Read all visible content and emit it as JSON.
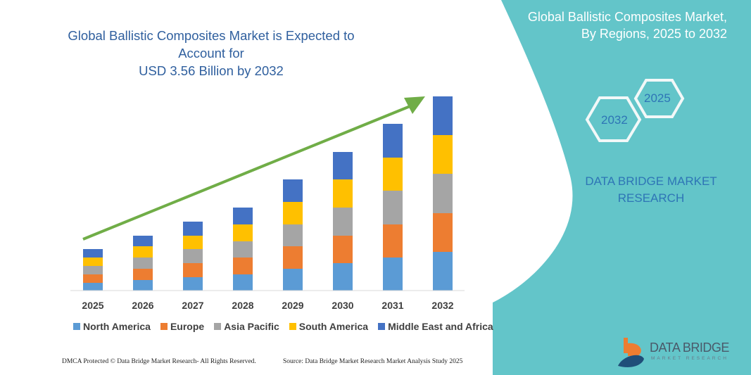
{
  "chart_data": {
    "type": "bar",
    "stacked": true,
    "title": "Global Ballistic Composites Market is Expected to Account for USD 3.56 Billion by 2032",
    "categories": [
      "2025",
      "2026",
      "2027",
      "2028",
      "2029",
      "2030",
      "2031",
      "2032"
    ],
    "series": [
      {
        "name": "North America",
        "color": "#5b9bd5",
        "values": [
          11,
          15,
          19,
          23,
          31,
          39,
          47,
          55
        ]
      },
      {
        "name": "Europe",
        "color": "#ed7d31",
        "values": [
          12,
          16,
          20,
          24,
          32,
          39,
          47,
          55
        ]
      },
      {
        "name": "Asia Pacific",
        "color": "#a5a5a5",
        "values": [
          12,
          16,
          20,
          23,
          31,
          40,
          48,
          56
        ]
      },
      {
        "name": "South America",
        "color": "#ffc000",
        "values": [
          12,
          16,
          19,
          24,
          32,
          40,
          47,
          55
        ]
      },
      {
        "name": "Middle East and Africa",
        "color": "#4472c4",
        "values": [
          12,
          15,
          20,
          24,
          32,
          39,
          48,
          55
        ]
      }
    ],
    "ylim": [
      0,
      280
    ],
    "grid": false,
    "legend_position": "bottom",
    "trend_arrow_color": "#70ad47"
  },
  "panel": {
    "title_line1": "Global Ballistic Composites Market,",
    "title_line2": "By Regions, 2025 to 2032",
    "hex_start": "2025",
    "hex_end": "2032",
    "brand_line1": "DATA BRIDGE MARKET",
    "brand_line2": "RESEARCH",
    "color": "#63c5c9"
  },
  "title_line1": "Global Ballistic Composites Market is Expected to Account for",
  "title_line2": "USD 3.56 Billion by 2032",
  "footer": {
    "left": "DMCA Protected © Data Bridge Market Research-  All Rights Reserved.",
    "right": "Source: Data Bridge Market Research  Market Analysis Study 2025"
  },
  "logo": {
    "name": "DATA BRIDGE",
    "sub": "MARKET RESEARCH"
  }
}
